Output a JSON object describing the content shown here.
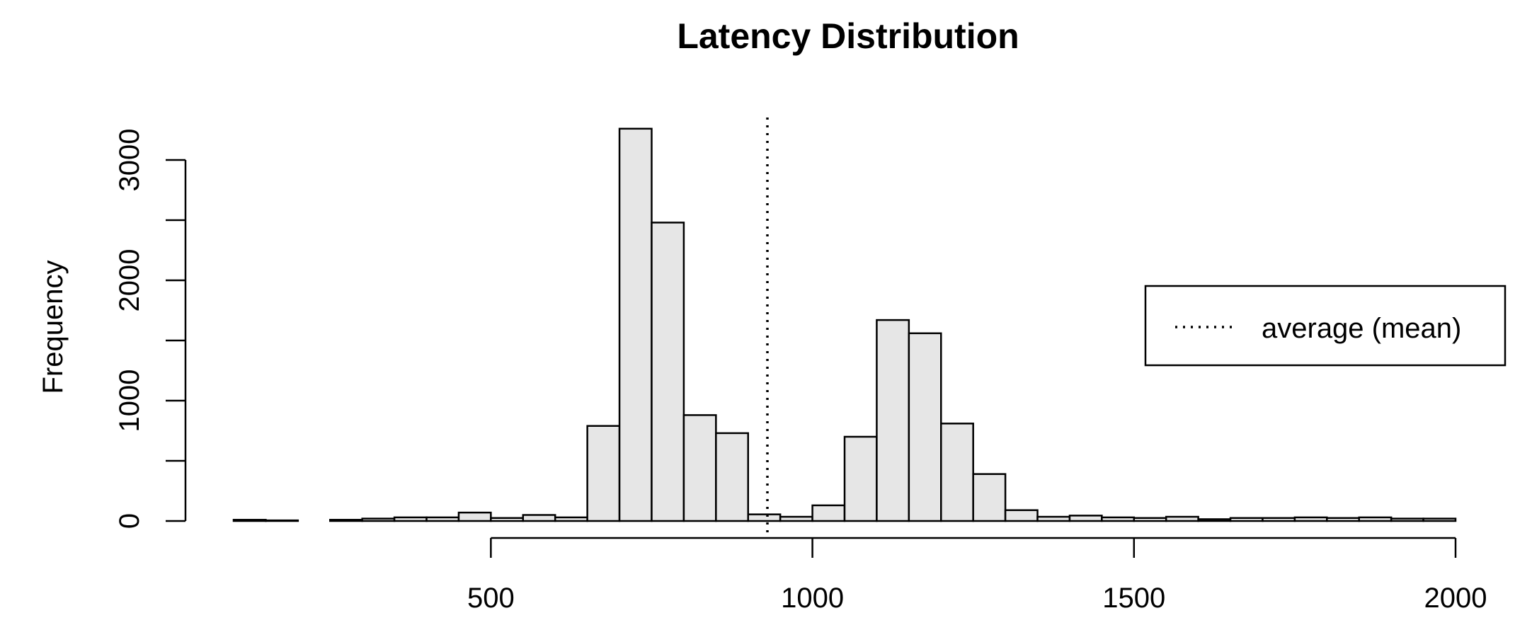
{
  "chart_data": {
    "type": "bar",
    "title": "Latency Distribution",
    "xlabel": "",
    "ylabel": "Frequency",
    "bin_width": 50,
    "bin_start": 100,
    "values": [
      10,
      5,
      0,
      10,
      20,
      30,
      30,
      70,
      25,
      50,
      30,
      790,
      3260,
      2480,
      880,
      730,
      55,
      35,
      130,
      700,
      1670,
      1560,
      810,
      390,
      90,
      35,
      45,
      30,
      25,
      35,
      15,
      25,
      25,
      30,
      25,
      30,
      20,
      20
    ],
    "xlim": [
      100,
      2000
    ],
    "ylim": [
      0,
      3300
    ],
    "x_ticks": [
      500,
      1000,
      1500,
      2000
    ],
    "y_ticks": [
      0,
      1000,
      2000,
      3000
    ],
    "x_tick_labels": [
      "500",
      "1000",
      "1500",
      "2000"
    ],
    "y_tick_labels": [
      "0",
      "1000",
      "2000",
      "3000"
    ],
    "mean": 930,
    "bar_color": "#e6e6e6",
    "legend": {
      "label": "average (mean)",
      "position": "right"
    },
    "grid": false
  }
}
